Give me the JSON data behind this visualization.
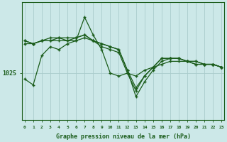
{
  "title": "Graphe pression niveau de la mer (hPa)",
  "bg_color": "#cce8e8",
  "plot_bg_color": "#cce8e8",
  "line_color": "#1a5c1a",
  "grid_color": "#aacccc",
  "axis_color": "#1a5c1a",
  "ylabel_value": 1025,
  "xmin": 0,
  "xmax": 23,
  "ymin": 1017,
  "ymax": 1037,
  "series": [
    [
      1024.0,
      1023.0,
      1028.0,
      1029.5,
      1029.0,
      1030.0,
      1030.5,
      1034.5,
      1031.5,
      1029.0,
      1025.0,
      1024.5,
      1025.0,
      1024.5,
      1025.5,
      1026.0,
      1026.5,
      1027.0,
      1027.0,
      1027.0,
      1026.5,
      1026.5,
      1026.5,
      1026.0
    ],
    [
      1030.0,
      1030.0,
      1030.5,
      1030.5,
      1030.5,
      1030.5,
      1030.5,
      1031.0,
      1030.5,
      1030.0,
      1029.5,
      1029.0,
      1025.5,
      1021.0,
      1023.5,
      1025.5,
      1027.0,
      1027.5,
      1027.5,
      1027.0,
      1026.5,
      1026.5,
      1026.5,
      1026.0
    ],
    [
      1030.5,
      1030.0,
      1030.5,
      1030.5,
      1031.0,
      1030.5,
      1031.0,
      1031.5,
      1030.5,
      1029.5,
      1029.0,
      1028.5,
      1025.0,
      1022.0,
      1024.5,
      1026.0,
      1027.5,
      1027.5,
      1027.5,
      1027.0,
      1027.0,
      1026.5,
      1026.5,
      1026.0
    ],
    [
      1030.5,
      1030.0,
      1030.5,
      1031.0,
      1031.0,
      1031.0,
      1031.0,
      1031.5,
      1030.5,
      1030.0,
      1029.5,
      1029.0,
      1025.5,
      1022.5,
      1024.5,
      1026.0,
      1027.5,
      1027.5,
      1027.5,
      1027.0,
      1027.0,
      1026.5,
      1026.5,
      1026.0
    ]
  ]
}
